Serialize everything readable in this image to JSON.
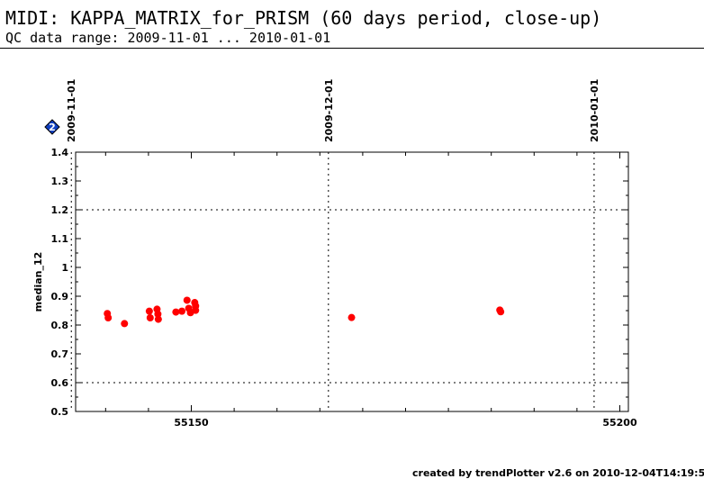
{
  "page": {
    "title": "MIDI: KAPPA_MATRIX_for_PRISM (60 days period, close-up)",
    "subtitle": "QC data range: 2009-11-01 ... 2010-01-01",
    "footer": "created by trendPlotter v2.6 on 2010-12-04T14:19:55",
    "badge_label": "2",
    "badge_icon": "diamond-2-icon"
  },
  "chart_data": {
    "type": "scatter",
    "title": "",
    "xlabel": "",
    "ylabel": "median_12",
    "xlim": [
      55136.5,
      55201
    ],
    "ylim": [
      0.5,
      1.4
    ],
    "x_ticks": [
      55150,
      55200
    ],
    "y_ticks": [
      0.5,
      0.6,
      0.7,
      0.8,
      0.9,
      1,
      1.1,
      1.2,
      1.3,
      1.4
    ],
    "y_tick_labels": [
      "0.5",
      "0.6",
      "0.7",
      "0.8",
      "0.9",
      "1",
      "1.1",
      "1.2",
      "1.3",
      "1.4"
    ],
    "x_tick_labels": [
      "55150",
      "55200"
    ],
    "date_markers": [
      {
        "label": "2009-11-01",
        "x": 55136
      },
      {
        "label": "2009-12-01",
        "x": 55166
      },
      {
        "label": "2010-01-01",
        "x": 55197
      }
    ],
    "reference_lines": [
      0.6,
      1.2
    ],
    "point_color": "#ff0000",
    "series": [
      {
        "values": [
          {
            "x": 55140.2,
            "y": 0.84
          },
          {
            "x": 55140.3,
            "y": 0.825
          },
          {
            "x": 55142.2,
            "y": 0.805
          },
          {
            "x": 55145.1,
            "y": 0.848
          },
          {
            "x": 55145.2,
            "y": 0.825
          },
          {
            "x": 55146.0,
            "y": 0.855
          },
          {
            "x": 55146.1,
            "y": 0.838
          },
          {
            "x": 55146.15,
            "y": 0.82
          },
          {
            "x": 55148.2,
            "y": 0.845
          },
          {
            "x": 55148.9,
            "y": 0.848
          },
          {
            "x": 55149.5,
            "y": 0.886
          },
          {
            "x": 55149.7,
            "y": 0.858
          },
          {
            "x": 55149.9,
            "y": 0.843
          },
          {
            "x": 55150.4,
            "y": 0.878
          },
          {
            "x": 55150.5,
            "y": 0.866
          },
          {
            "x": 55150.5,
            "y": 0.851
          },
          {
            "x": 55168.7,
            "y": 0.826
          },
          {
            "x": 55186.0,
            "y": 0.852
          },
          {
            "x": 55186.1,
            "y": 0.846
          }
        ]
      }
    ]
  }
}
